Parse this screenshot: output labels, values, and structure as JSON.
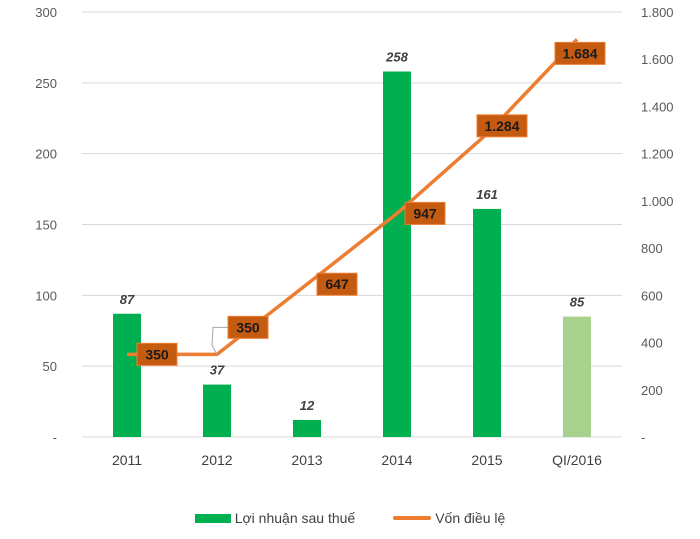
{
  "chart_data": {
    "type": "bar+line",
    "title": "",
    "categories": [
      "2011",
      "2012",
      "2013",
      "2014",
      "2015",
      "QI/2016"
    ],
    "series": [
      {
        "name": "Lợi nhuận sau thuế",
        "type": "bar",
        "axis": "left",
        "values": [
          87,
          37,
          12,
          258,
          161,
          85
        ],
        "labels": [
          "87",
          "37",
          "12",
          "258",
          "161",
          "85"
        ],
        "color": "#00b050",
        "highlight_color": "#a9d18e"
      },
      {
        "name": "Vốn điều lệ",
        "type": "line",
        "axis": "right",
        "values": [
          350,
          350,
          647,
          947,
          1284,
          1684
        ],
        "labels": [
          "350",
          "350",
          "647",
          "947",
          "1.284",
          "1.684"
        ],
        "color": "#ed7d31",
        "label_box_color": "#c55a11"
      }
    ],
    "y_left": {
      "range": [
        0,
        300
      ],
      "ticks": [
        0,
        50,
        100,
        150,
        200,
        250,
        300
      ],
      "tick_labels": [
        "-",
        "50",
        "100",
        "150",
        "200",
        "250",
        "300"
      ]
    },
    "y_right": {
      "range": [
        0,
        1800
      ],
      "ticks": [
        0,
        200,
        400,
        600,
        800,
        1000,
        1200,
        1400,
        1600,
        1800
      ],
      "tick_labels": [
        "-",
        "200",
        "400",
        "600",
        "800",
        "1.000",
        "1.200",
        "1.400",
        "1.600",
        "1.800"
      ]
    },
    "grid": true,
    "legend_position": "bottom"
  }
}
